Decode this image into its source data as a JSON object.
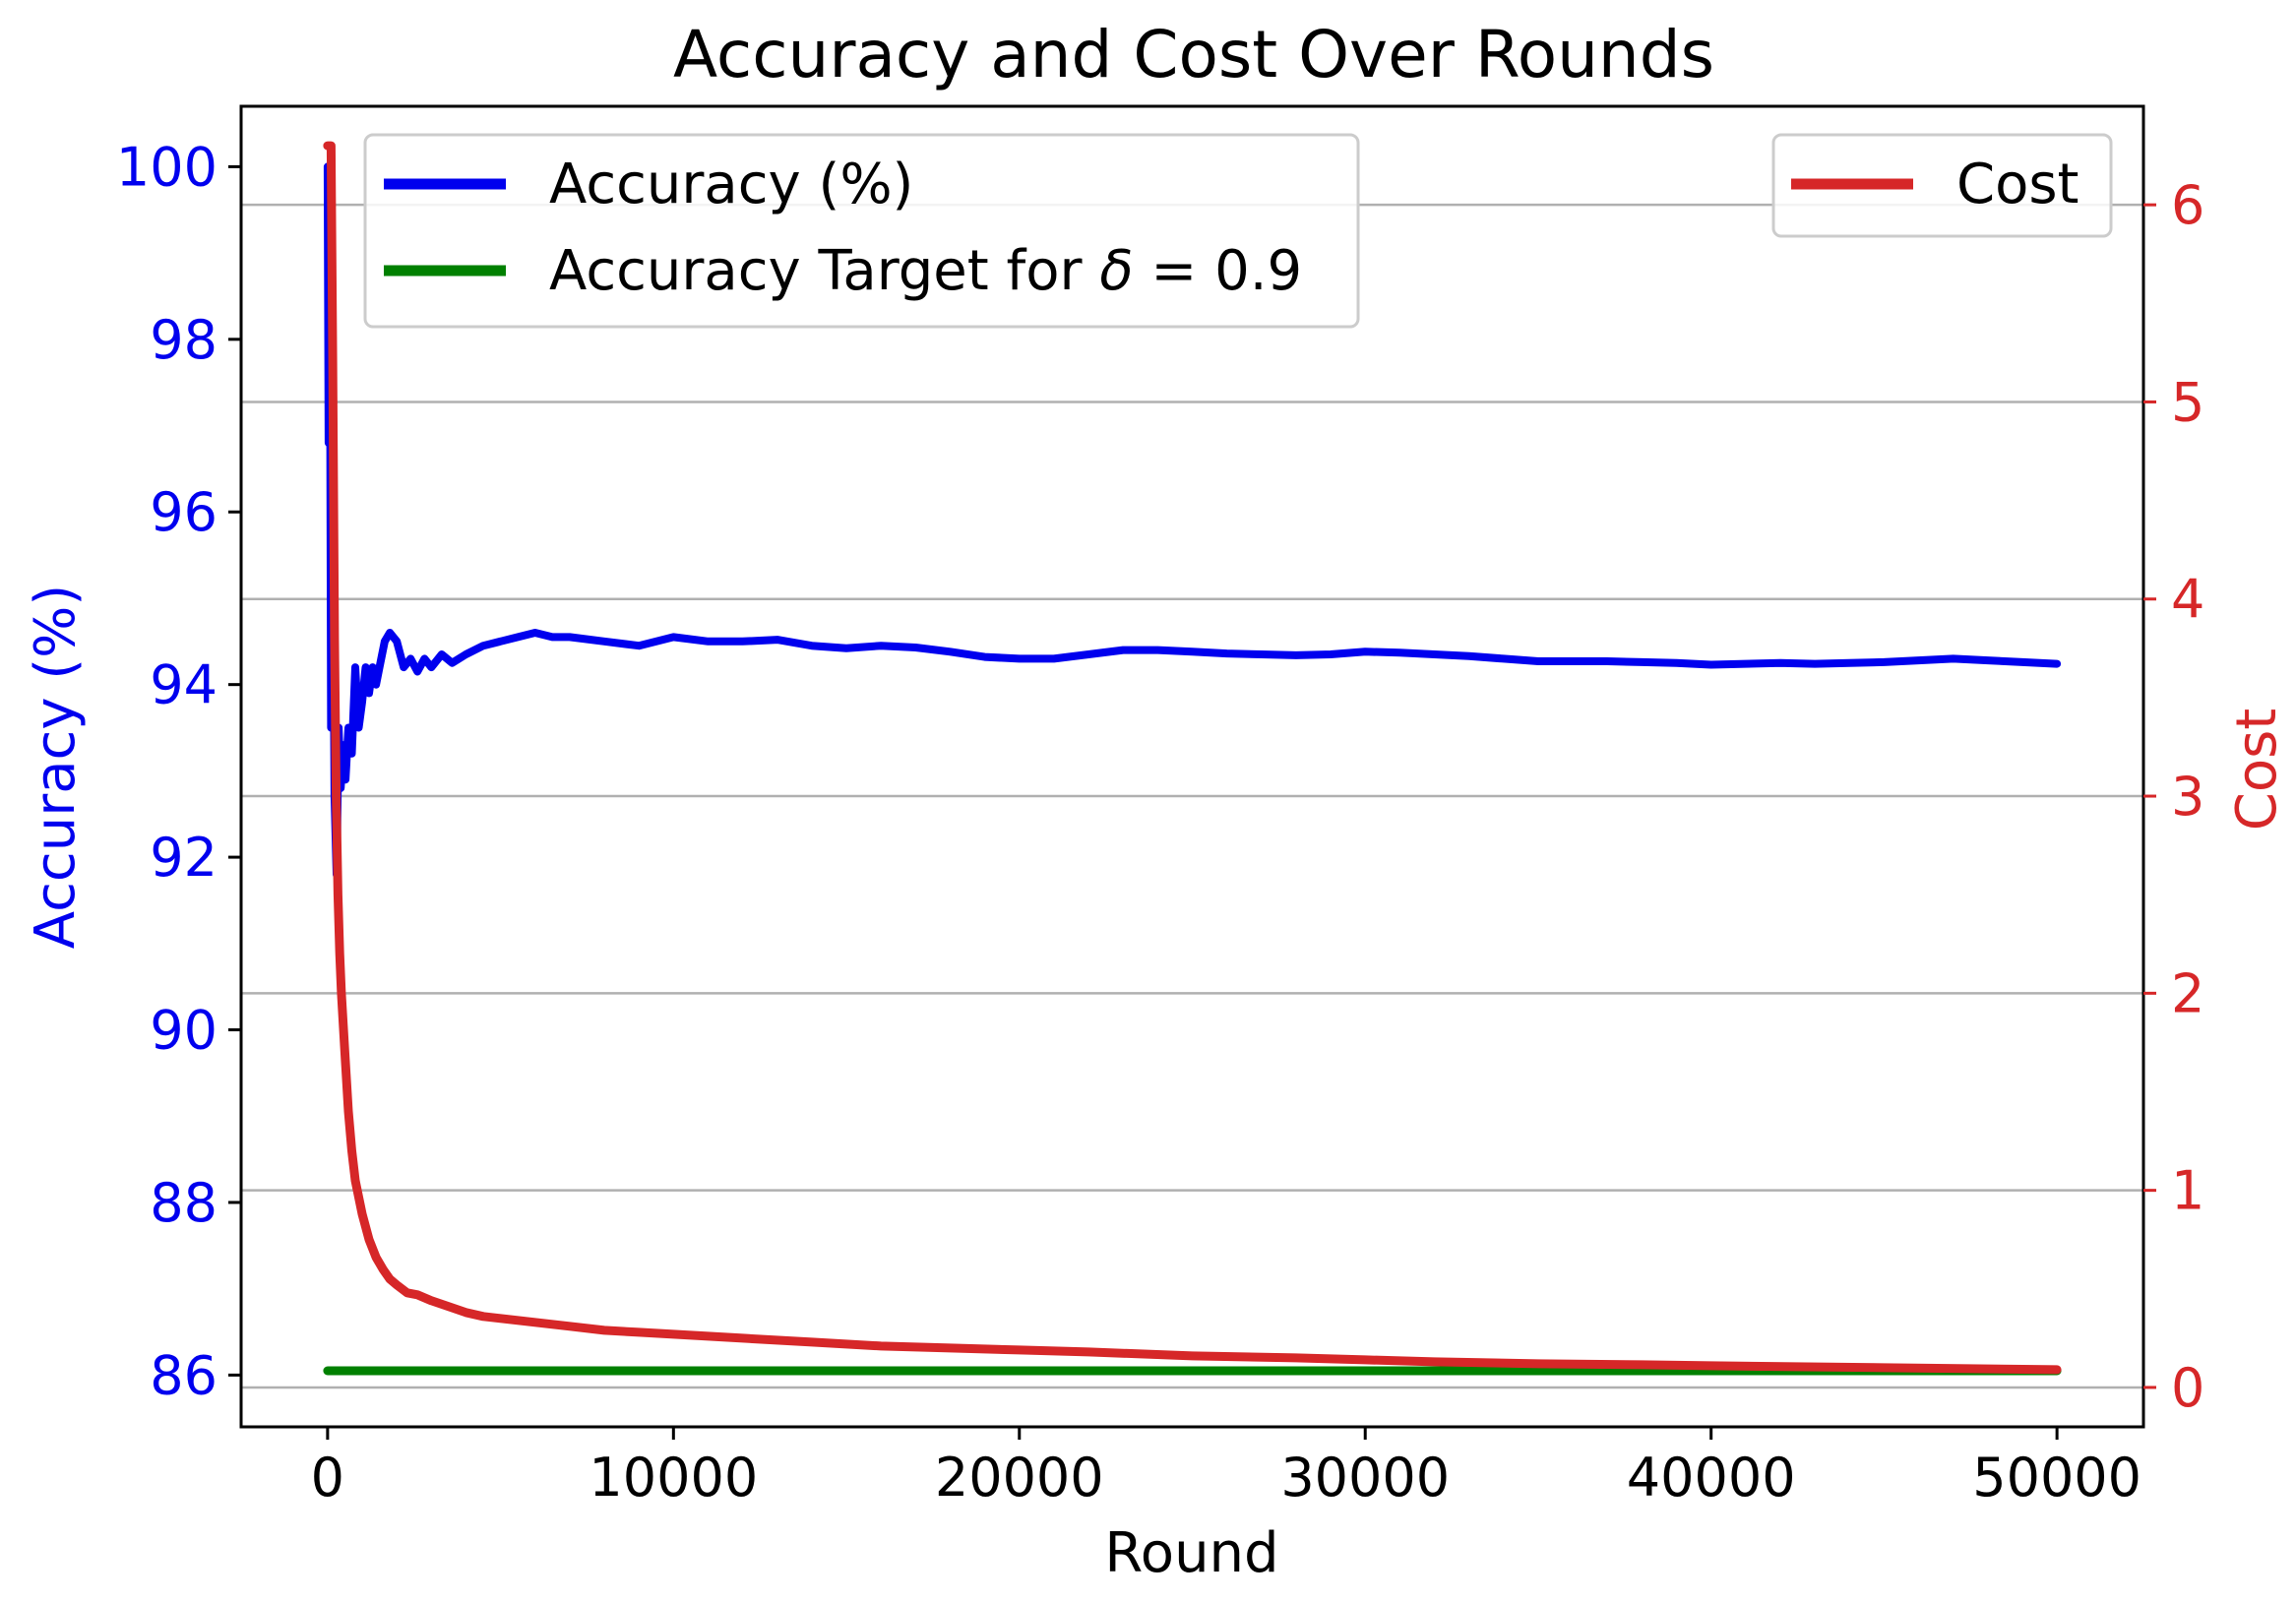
{
  "chart_data": {
    "type": "line",
    "title": "Accuracy and Cost Over Rounds",
    "xlabel": "Round",
    "ylabel_left": "Accuracy (%)",
    "ylabel_right": "Cost",
    "xlim": [
      -2500,
      52500
    ],
    "ylim_left": [
      85.4,
      100.7
    ],
    "ylim_right": [
      -0.2,
      6.5
    ],
    "x_ticks": [
      0,
      10000,
      20000,
      30000,
      40000,
      50000
    ],
    "y_ticks_left": [
      86,
      88,
      90,
      92,
      94,
      96,
      98,
      100
    ],
    "y_ticks_right": [
      0,
      1,
      2,
      3,
      4,
      5,
      6
    ],
    "grid": "horizontal lines at right-axis ticks",
    "colors": {
      "accuracy": "#0000ee",
      "target": "#008000",
      "cost": "#d62728",
      "grid": "#b0b0b0"
    },
    "legend_left": {
      "placement": "upper-left",
      "entries": [
        {
          "label": "Accuracy (%)",
          "series": "accuracy"
        },
        {
          "label": "Accuracy Target for δ = 0.9",
          "label_prefix": "Accuracy Target for ",
          "label_symbol": "δ",
          "label_suffix": " = 0.9",
          "series": "target"
        }
      ]
    },
    "legend_right": {
      "placement": "upper-right",
      "entries": [
        {
          "label": "Cost",
          "series": "cost"
        }
      ]
    },
    "series": [
      {
        "name": "Accuracy (%)",
        "key": "accuracy",
        "axis": "left",
        "x": [
          0,
          30,
          60,
          100,
          150,
          200,
          260,
          320,
          380,
          450,
          520,
          600,
          700,
          800,
          900,
          1000,
          1100,
          1200,
          1300,
          1400,
          1500,
          1650,
          1800,
          2000,
          2200,
          2400,
          2600,
          2800,
          3000,
          3300,
          3600,
          4000,
          4500,
          5000,
          5500,
          6000,
          6500,
          7000,
          8000,
          9000,
          10000,
          11000,
          12000,
          13000,
          14000,
          15000,
          16000,
          17000,
          18000,
          19000,
          20000,
          21000,
          22000,
          23000,
          24000,
          25000,
          26000,
          27000,
          28000,
          29000,
          30000,
          31000,
          32000,
          33000,
          34000,
          35000,
          36000,
          37000,
          38000,
          39000,
          40000,
          41000,
          42000,
          43000,
          44000,
          45000,
          46000,
          47000,
          48000,
          49000,
          50000
        ],
        "y": [
          100,
          96.8,
          99.3,
          93.5,
          95.8,
          92.7,
          91.8,
          93.5,
          92.8,
          93.3,
          92.9,
          93.5,
          93.2,
          94.2,
          93.5,
          93.8,
          94.2,
          93.9,
          94.2,
          94.0,
          94.2,
          94.5,
          94.6,
          94.5,
          94.2,
          94.3,
          94.15,
          94.3,
          94.2,
          94.35,
          94.25,
          94.35,
          94.45,
          94.5,
          94.55,
          94.6,
          94.55,
          94.55,
          94.5,
          94.45,
          94.55,
          94.5,
          94.5,
          94.52,
          94.45,
          94.42,
          94.45,
          94.43,
          94.38,
          94.32,
          94.3,
          94.3,
          94.35,
          94.4,
          94.4,
          94.38,
          94.36,
          94.35,
          94.34,
          94.35,
          94.38,
          94.37,
          94.35,
          94.33,
          94.3,
          94.27,
          94.27,
          94.27,
          94.26,
          94.25,
          94.23,
          94.24,
          94.25,
          94.24,
          94.25,
          94.26,
          94.28,
          94.3,
          94.28,
          94.26,
          94.24
        ]
      },
      {
        "name": "Accuracy Target for δ = 0.9",
        "key": "target",
        "axis": "left",
        "x": [
          0,
          50000
        ],
        "y": [
          86.05,
          86.05
        ]
      },
      {
        "name": "Cost",
        "key": "cost",
        "axis": "right",
        "x": [
          0,
          100,
          150,
          200,
          250,
          300,
          350,
          400,
          500,
          600,
          700,
          800,
          1000,
          1200,
          1400,
          1600,
          1800,
          2000,
          2300,
          2600,
          3000,
          3500,
          4000,
          4500,
          5000,
          6000,
          7000,
          8000,
          9000,
          10000,
          12000,
          14000,
          16000,
          18000,
          20000,
          22000,
          25000,
          28000,
          30000,
          32000,
          35000,
          38000,
          40000,
          45000,
          50000
        ],
        "y": [
          6.3,
          6.3,
          5.2,
          3.8,
          3.0,
          2.5,
          2.2,
          2.0,
          1.7,
          1.4,
          1.2,
          1.05,
          0.88,
          0.75,
          0.66,
          0.6,
          0.55,
          0.52,
          0.48,
          0.47,
          0.44,
          0.41,
          0.38,
          0.36,
          0.35,
          0.33,
          0.31,
          0.29,
          0.28,
          0.27,
          0.25,
          0.23,
          0.21,
          0.2,
          0.19,
          0.18,
          0.16,
          0.15,
          0.14,
          0.13,
          0.12,
          0.115,
          0.11,
          0.1,
          0.09
        ]
      }
    ]
  }
}
